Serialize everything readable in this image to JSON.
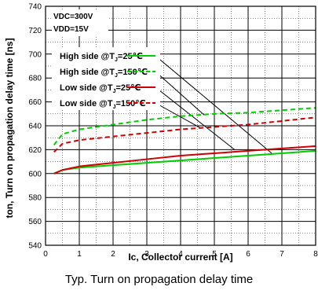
{
  "chart_data": {
    "type": "line",
    "title": "",
    "xlabel": "Ic, Collector current [A]",
    "ylabel": "ton, Turn on propagation delay time [ns]",
    "xlim": [
      0,
      8
    ],
    "ylim": [
      540,
      740
    ],
    "x_ticks": [
      "0",
      "1",
      "2",
      "3",
      "4",
      "5",
      "6",
      "7",
      "8"
    ],
    "y_ticks": [
      "540",
      "560",
      "580",
      "600",
      "620",
      "640",
      "660",
      "680",
      "700",
      "720",
      "740"
    ],
    "grid": true,
    "conditions": [
      "VDC=300V",
      "VDD=15V"
    ],
    "legend_position": "top-left",
    "series": [
      {
        "name": "High side @TJ=25℃",
        "label_main": "High side @T",
        "label_sub": "J",
        "label_end": "=25℃",
        "color": "#00cc00",
        "dashed": false,
        "x": [
          0.25,
          0.5,
          1,
          2,
          3,
          4,
          5,
          6,
          7,
          8
        ],
        "y": [
          600,
          603,
          605,
          607,
          609,
          611,
          613,
          615,
          617,
          619
        ]
      },
      {
        "name": "High side @TJ=150℃",
        "label_main": "High side @T",
        "label_sub": "J",
        "label_end": "=150℃",
        "color": "#00cc00",
        "dashed": true,
        "x": [
          0.25,
          0.5,
          1,
          2,
          3,
          4,
          5,
          6,
          7,
          8
        ],
        "y": [
          624,
          633,
          637,
          641,
          645,
          648,
          650,
          651,
          653,
          655
        ]
      },
      {
        "name": "Low side @TJ=25℃",
        "label_main": "Low side @T",
        "label_sub": "J",
        "label_end": "=25℃",
        "color": "#cc0000",
        "dashed": false,
        "x": [
          0.25,
          0.5,
          1,
          2,
          3,
          4,
          5,
          6,
          7,
          8
        ],
        "y": [
          600,
          603,
          606,
          609,
          612,
          615,
          617,
          619,
          621,
          623
        ]
      },
      {
        "name": "Low side @TJ=150℃",
        "label_main": "Low side @T",
        "label_sub": "J",
        "label_end": "=150℃",
        "color": "#cc0000",
        "dashed": true,
        "x": [
          0.25,
          0.5,
          1,
          2,
          3,
          4,
          5,
          6,
          7,
          8
        ],
        "y": [
          618,
          625,
          628,
          631,
          634,
          637,
          639,
          641,
          644,
          647
        ]
      }
    ],
    "annotations": [
      {
        "from_series": 0,
        "to": [
          6.7,
          617
        ]
      },
      {
        "from_series": 1,
        "to": [
          4.7,
          649
        ]
      },
      {
        "from_series": 2,
        "to": [
          5.6,
          620
        ]
      },
      {
        "from_series": 3,
        "to": [
          4.6,
          638
        ]
      }
    ]
  },
  "caption": "Typ. Turn on propagation delay time"
}
